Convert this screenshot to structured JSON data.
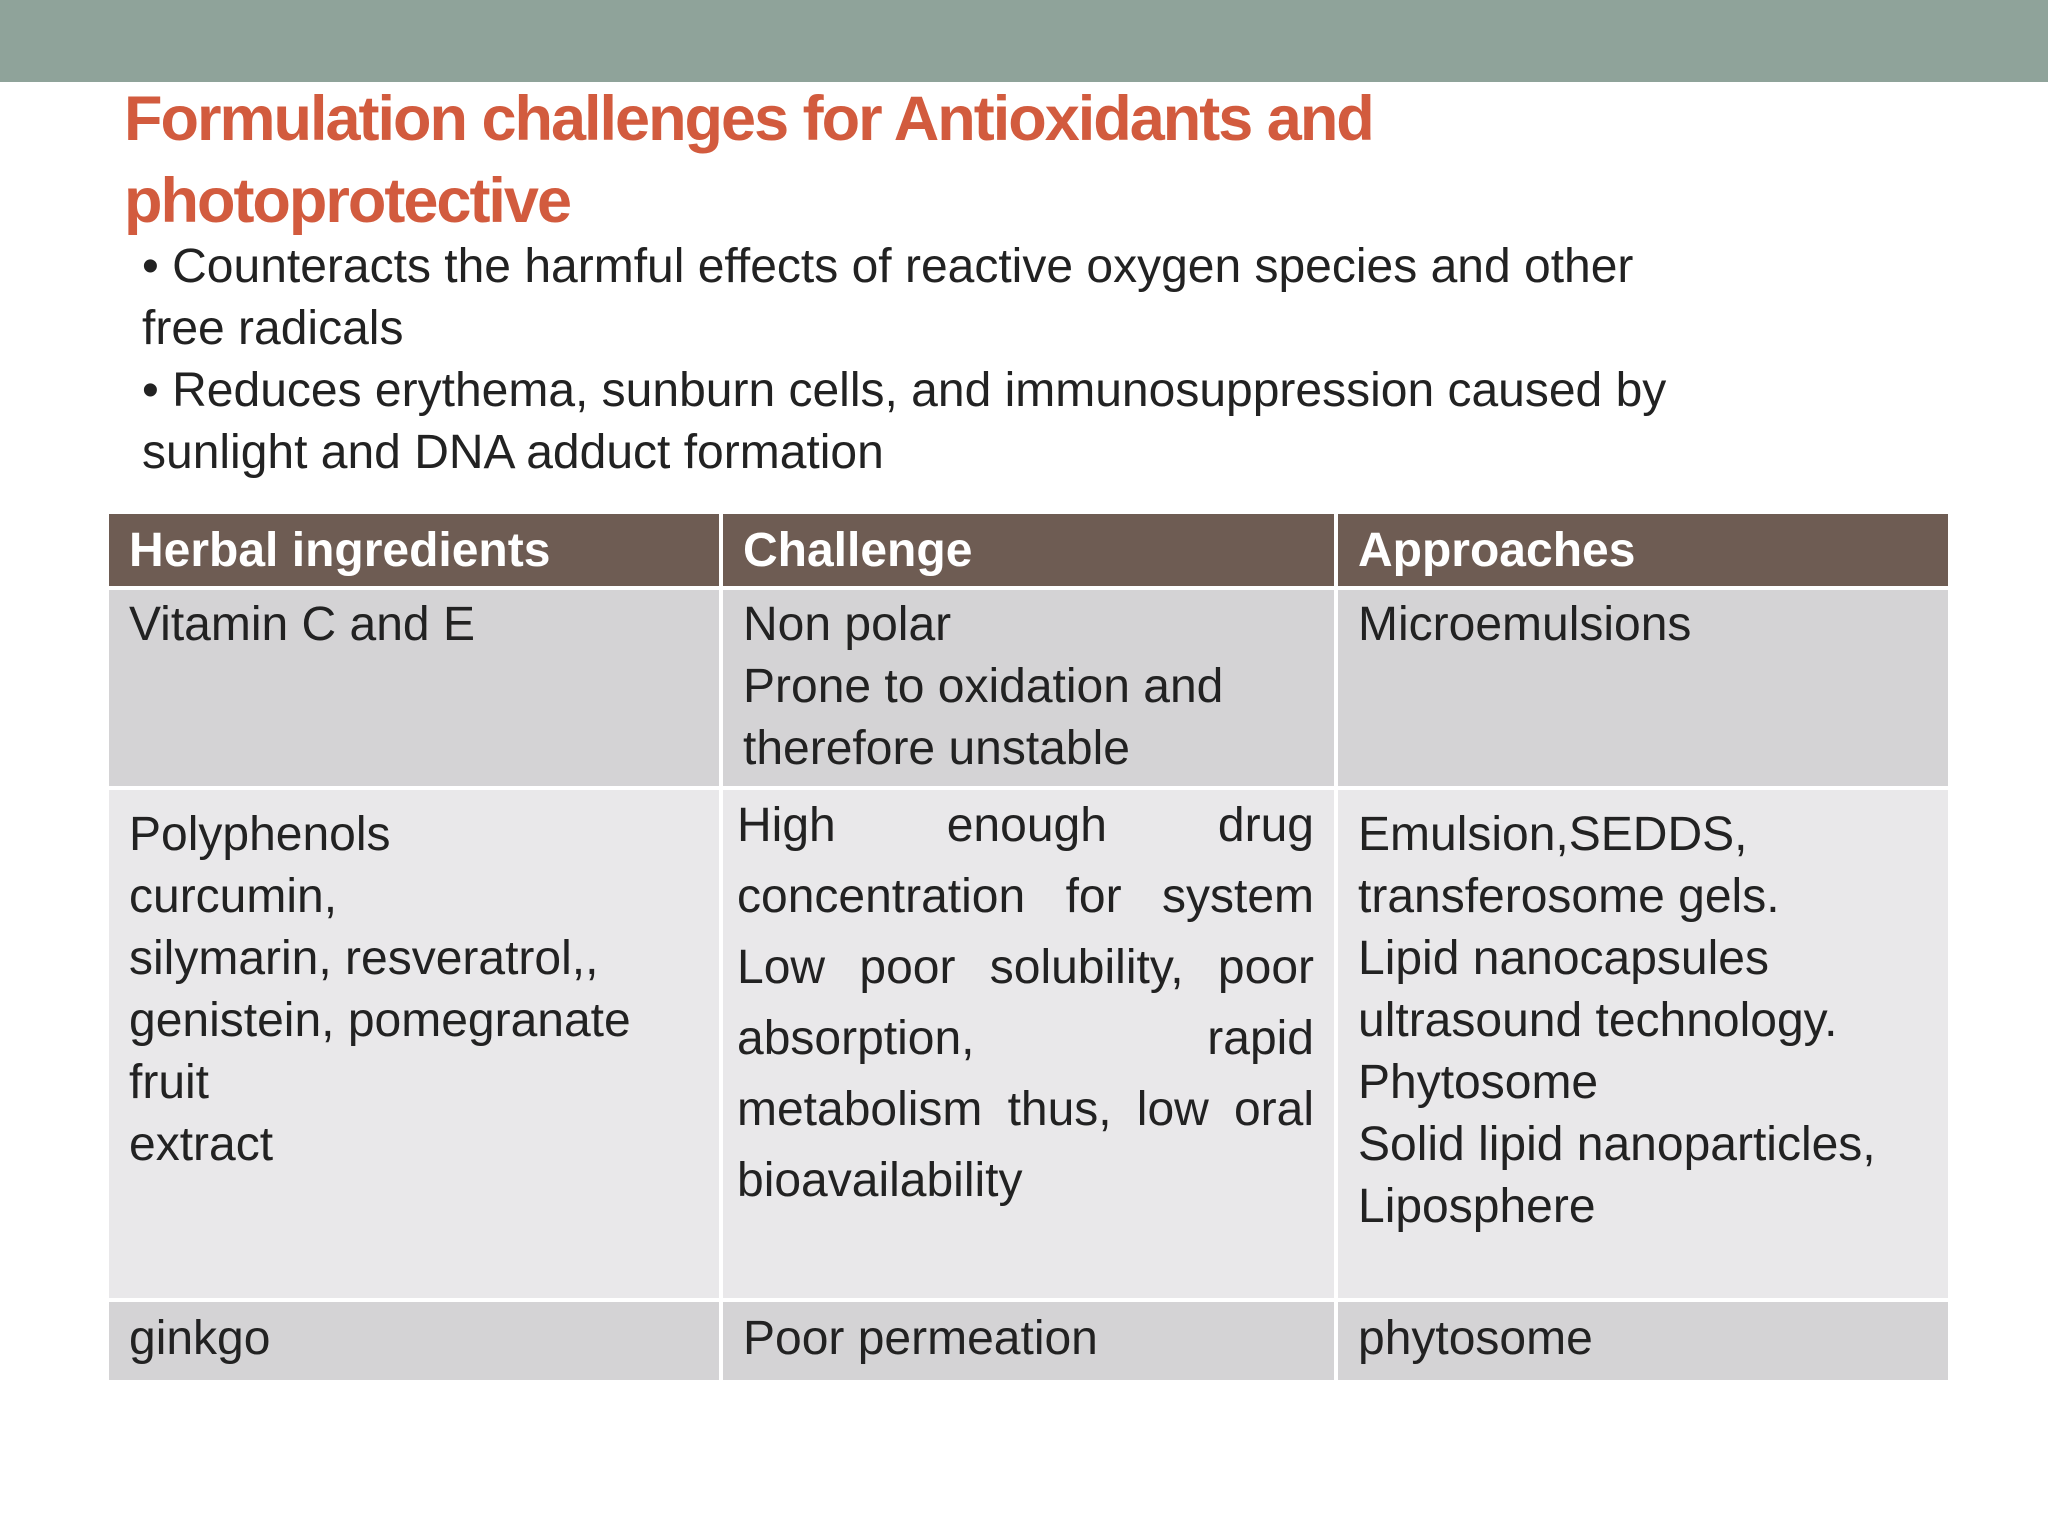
{
  "slide": {
    "title": "Formulation challenges for Antioxidants and photoprotective",
    "bullets": [
      "Counteracts the harmful effects of reactive oxygen species and other free radicals",
      "Reduces erythema, sunburn cells, and immunosuppression caused by sunlight and DNA adduct formation"
    ]
  },
  "table": {
    "headers": [
      "Herbal ingredients",
      "Challenge",
      "Approaches"
    ],
    "rows": [
      {
        "ingredient": "Vitamin C and E",
        "challenge": "Non polar\nProne to oxidation and therefore unstable",
        "approach": "Microemulsions"
      },
      {
        "ingredient": "Polyphenols\ncurcumin,\nsilymarin, resveratrol,,\ngenistein, pomegranate fruit\nextract",
        "challenge": "High enough drug concentration for system Low poor solubility, poor absorption, rapid metabolism thus, low oral bioavailability",
        "approach": "Emulsion,SEDDS,\ntransferosome gels.\nLipid nanocapsules\nultrasound technology.\nPhytosome\nSolid lipid nanoparticles,\nLiposphere"
      },
      {
        "ingredient": "ginkgo",
        "challenge": "Poor permeation",
        "approach": "phytosome"
      }
    ]
  },
  "colors": {
    "top_bar": "#8fa39a",
    "title": "#d25b3e",
    "header_bg": "#6e5c53",
    "row_dark": "#d4d3d5",
    "row_light": "#e9e8ea"
  }
}
